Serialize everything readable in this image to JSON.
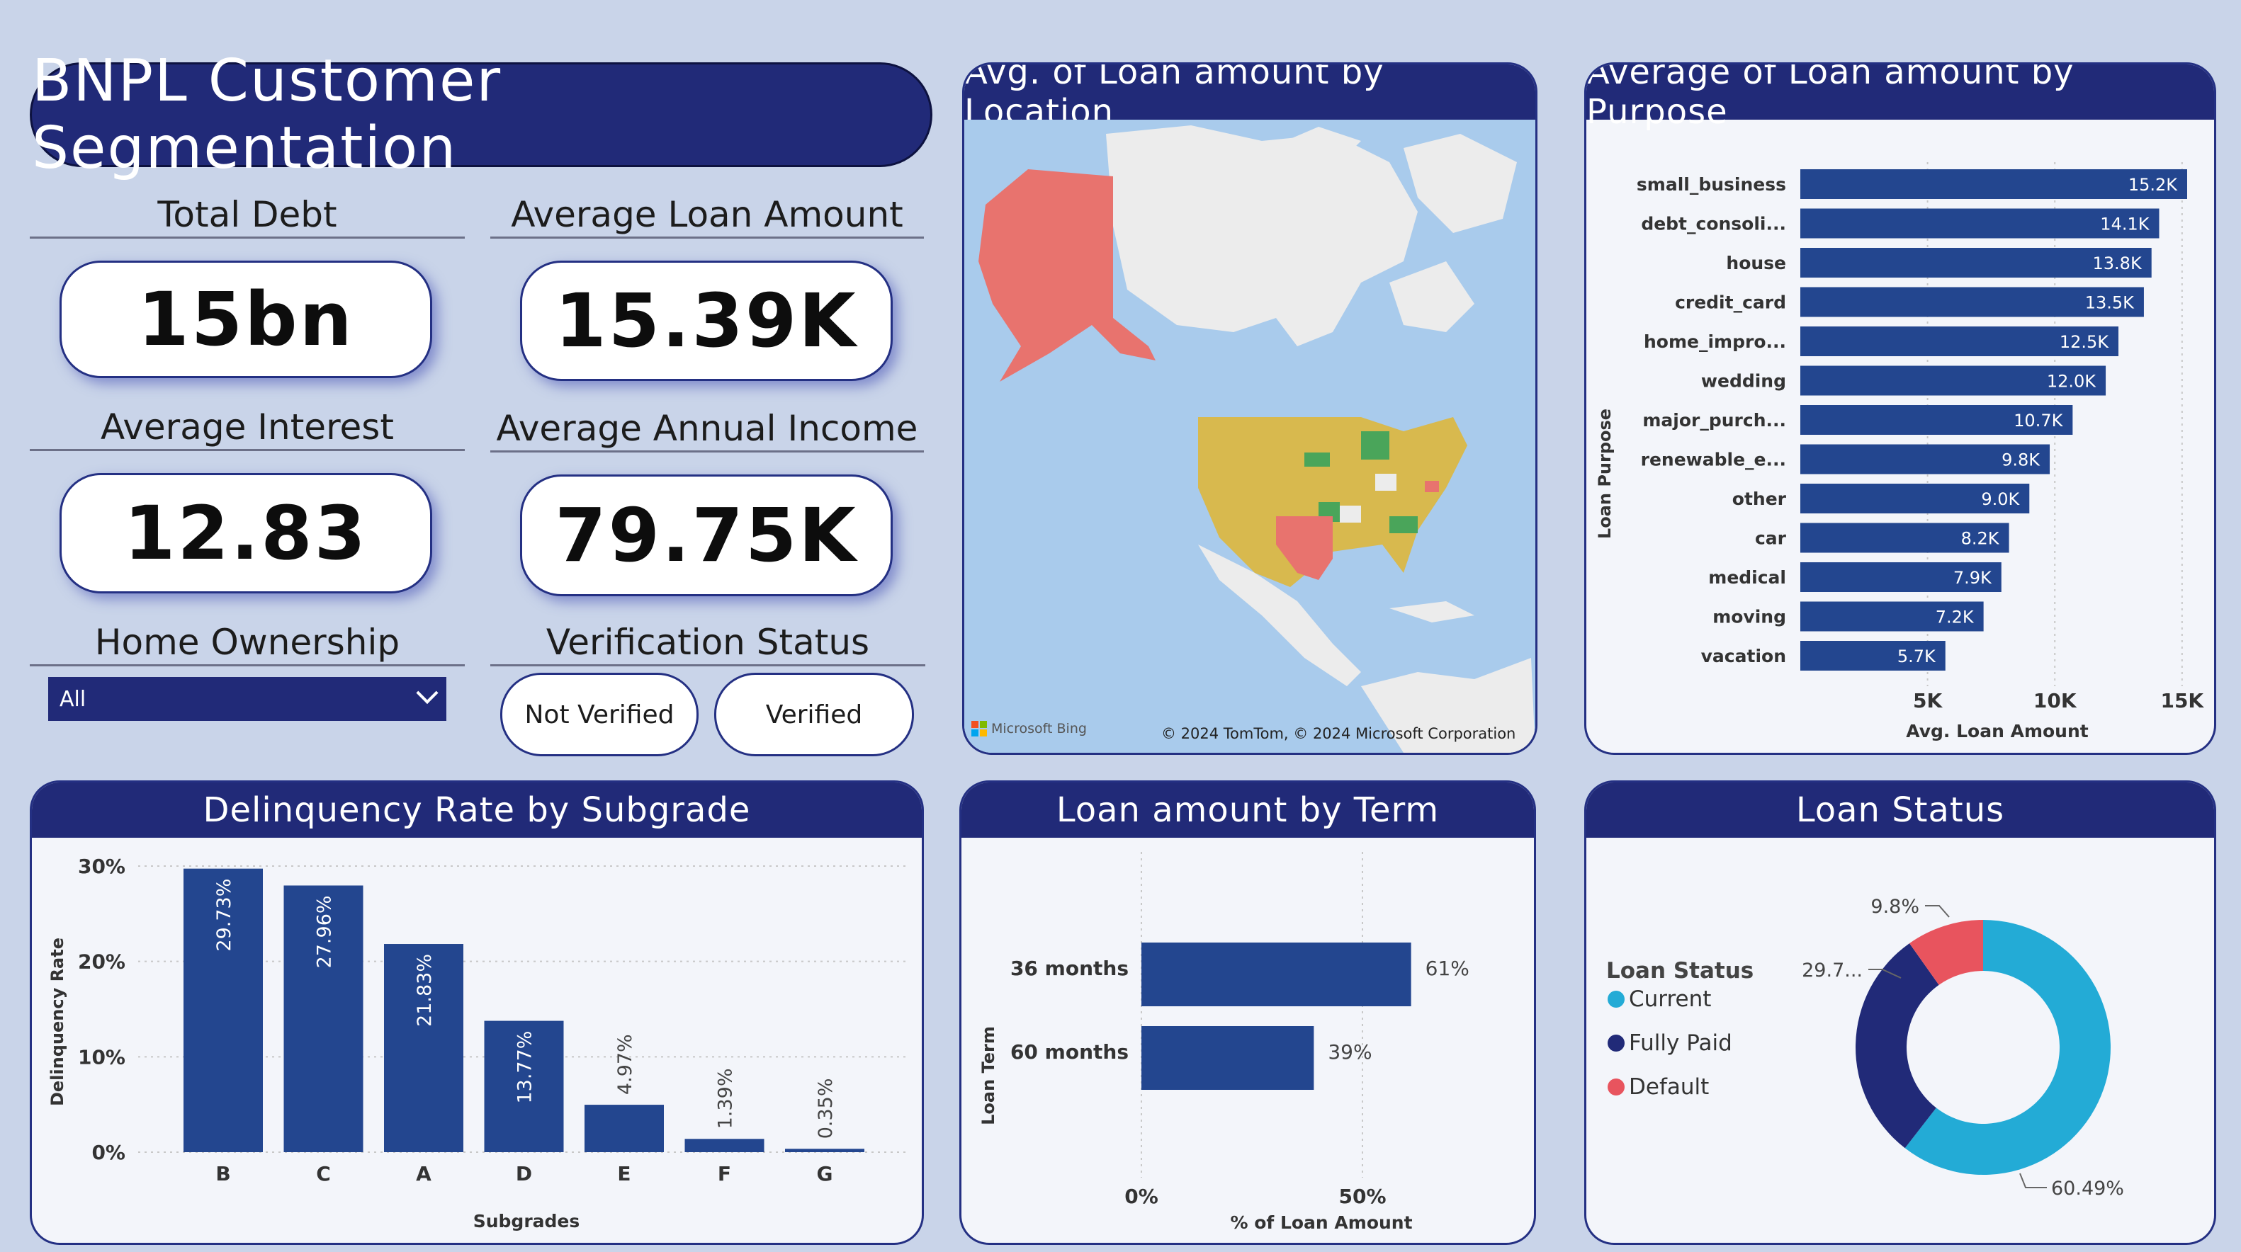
{
  "title": "BNPL Customer Segmentation",
  "kpis": {
    "total_debt": {
      "label": "Total Debt",
      "value": "15bn"
    },
    "avg_loan": {
      "label": "Average Loan Amount",
      "value": "15.39K"
    },
    "avg_interest": {
      "label": "Average Interest",
      "value": "12.83"
    },
    "avg_income": {
      "label": "Average Annual Income",
      "value": "79.75K"
    }
  },
  "home_ownership": {
    "label": "Home Ownership",
    "selected": "All"
  },
  "verification": {
    "label": "Verification Status",
    "options": [
      "Not Verified",
      "Verified"
    ]
  },
  "map_panel": {
    "title": "Avg. of Loan amount by Location",
    "attribution": "© 2024 TomTom, © 2024 Microsoft Corporation",
    "provider": "Microsoft Bing",
    "colors": {
      "alaska": "#e8736e",
      "lower48": "#d8b94e",
      "green": "#4aa55a",
      "red": "#e8736e",
      "water": "#a9cbec",
      "land": "#ececec"
    }
  },
  "purpose_panel": {
    "title": "Average of Loan amount by Purpose",
    "chart_data": {
      "type": "bar",
      "orientation": "horizontal",
      "categories": [
        "small_business",
        "debt_consoli...",
        "house",
        "credit_card",
        "home_impro...",
        "wedding",
        "major_purch...",
        "renewable_e...",
        "other",
        "car",
        "medical",
        "moving",
        "vacation"
      ],
      "values": [
        15.2,
        14.1,
        13.8,
        13.5,
        12.5,
        12.0,
        10.7,
        9.8,
        9.0,
        8.2,
        7.9,
        7.2,
        5.7
      ],
      "value_labels": [
        "15.2K",
        "14.1K",
        "13.8K",
        "13.5K",
        "12.5K",
        "12.0K",
        "10.7K",
        "9.8K",
        "9.0K",
        "8.2K",
        "7.9K",
        "7.2K",
        "5.7K"
      ],
      "xlabel": "Avg. Loan Amount",
      "ylabel": "Loan Purpose",
      "xticks": [
        "5K",
        "10K",
        "15K"
      ],
      "xlim": [
        0,
        15.2
      ],
      "color": "#23468f"
    }
  },
  "delinquency_panel": {
    "title": "Delinquency Rate by Subgrade",
    "chart_data": {
      "type": "bar",
      "categories": [
        "B",
        "C",
        "A",
        "D",
        "E",
        "F",
        "G"
      ],
      "values": [
        29.73,
        27.96,
        21.83,
        13.77,
        4.97,
        1.39,
        0.35
      ],
      "value_labels": [
        "29.73%",
        "27.96%",
        "21.83%",
        "13.77%",
        "4.97%",
        "1.39%",
        "0.35%"
      ],
      "xlabel": "Subgrades",
      "ylabel": "Delinquency Rate",
      "yticks": [
        "30%",
        "20%",
        "10%",
        "0%"
      ],
      "ylim": [
        0,
        30
      ],
      "color": "#23468f"
    }
  },
  "term_panel": {
    "title": "Loan amount by Term",
    "chart_data": {
      "type": "bar",
      "orientation": "horizontal",
      "categories": [
        "36 months",
        "60 months"
      ],
      "values": [
        61,
        39
      ],
      "value_labels": [
        "61%",
        "39%"
      ],
      "xlabel": "% of Loan Amount",
      "ylabel": "Loan Term",
      "xticks": [
        "0%",
        "50%"
      ],
      "xlim": [
        0,
        50
      ],
      "color": "#23468f"
    }
  },
  "status_panel": {
    "title": "Loan Status",
    "chart_data": {
      "type": "pie",
      "legend_title": "Loan Status",
      "categories": [
        "Current",
        "Fully Paid",
        "Default"
      ],
      "values": [
        60.49,
        29.7,
        9.8
      ],
      "value_labels": [
        "60.49%",
        "29.7...",
        "9.8%"
      ],
      "colors": [
        "#23abd6",
        "#212a78",
        "#e8545e"
      ],
      "donut": true
    }
  }
}
